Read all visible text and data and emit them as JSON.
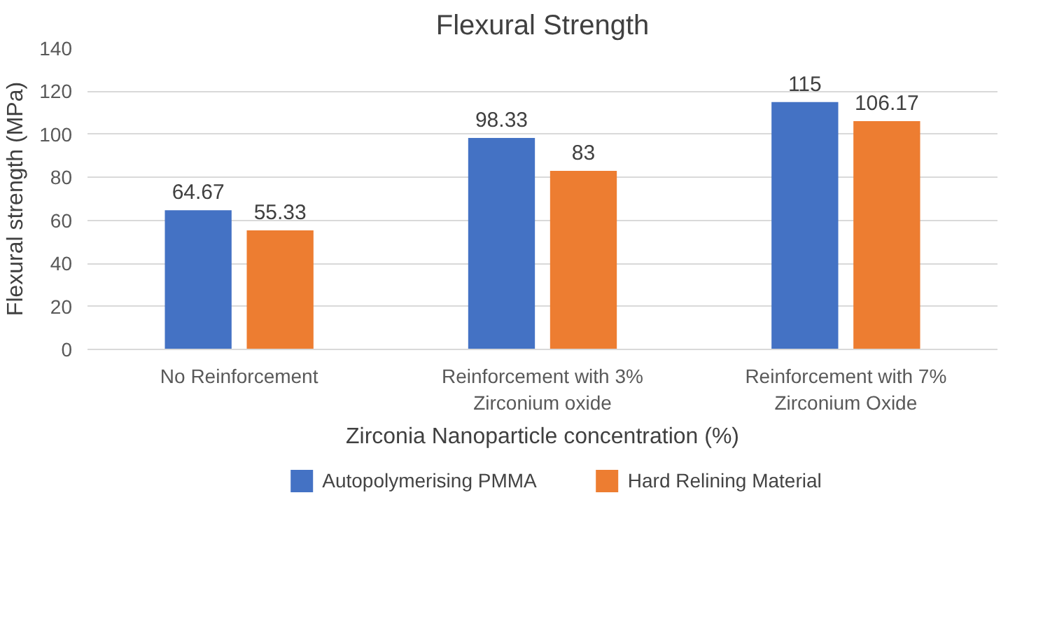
{
  "chart_data": {
    "type": "bar",
    "title": "Flexural Strength",
    "xlabel": "Zirconia Nanoparticle concentration (%)",
    "ylabel": "Flexural strength (MPa)",
    "categories": [
      "No Reinforcement",
      "Reinforcement with 3%\nZirconium oxide",
      "Reinforcement with 7%\nZirconium Oxide"
    ],
    "series": [
      {
        "name": "Autopolymerising PMMA",
        "color": "#4472c4",
        "values": [
          64.67,
          98.33,
          115
        ]
      },
      {
        "name": "Hard Relining Material",
        "color": "#ed7d31",
        "values": [
          55.33,
          83,
          106.17
        ]
      }
    ],
    "ylim": [
      0,
      140
    ],
    "yticks": [
      0,
      20,
      40,
      60,
      80,
      100,
      120,
      140
    ],
    "grid": "y",
    "legend": "bottom",
    "data_labels": true
  }
}
